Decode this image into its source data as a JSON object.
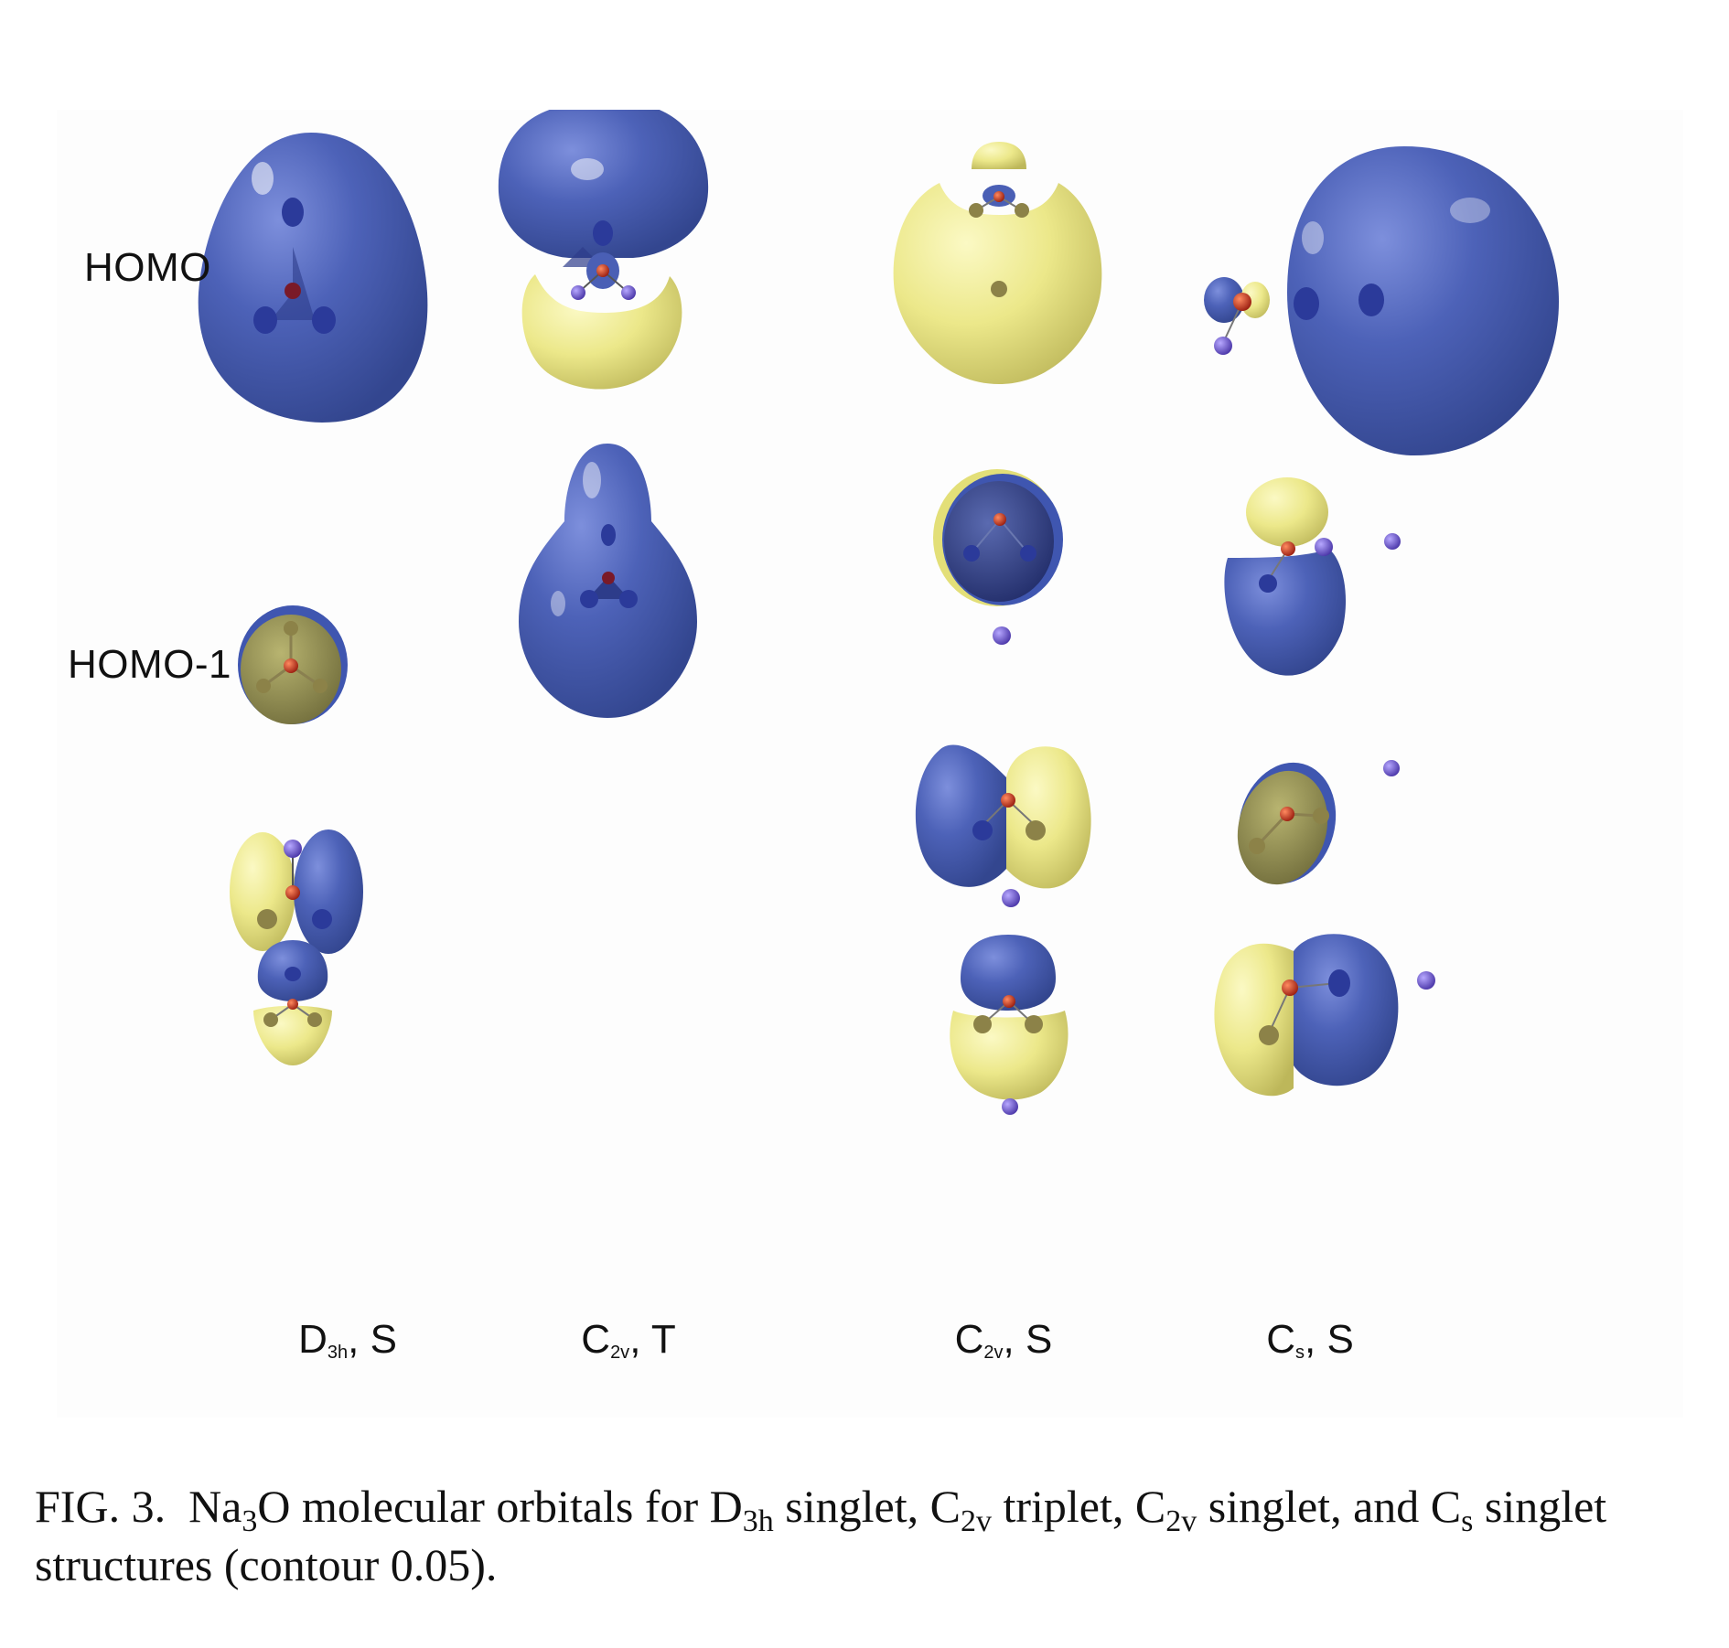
{
  "figure": {
    "row_labels": {
      "homo": "HOMO",
      "homo1": "HOMO-1"
    },
    "columns": [
      {
        "main": "D",
        "sub": "3h",
        "tail": ", S"
      },
      {
        "main": "C",
        "sub": "2v",
        "tail": ", T"
      },
      {
        "main": "C",
        "sub": "2v",
        "tail": ", S"
      },
      {
        "main": "C",
        "sub": "s",
        "tail": ", S"
      }
    ],
    "colors": {
      "positive_lobe": "#4a5fb5",
      "negative_lobe": "#e8e47a",
      "oxygen_atom": "#c0301c",
      "sodium_atom": "#6b55c8"
    }
  },
  "caption": {
    "fig": "FIG. 3.",
    "p1": "Na",
    "s1": "3",
    "p2": "O molecular orbitals for D",
    "s2": "3h",
    "p3": " singlet, C",
    "s3": "2v",
    "p4": " triplet, C",
    "s4": "2v",
    "p5": " singlet, and C",
    "s5": "s",
    "p6": " singlet structures (contour 0.05)."
  }
}
